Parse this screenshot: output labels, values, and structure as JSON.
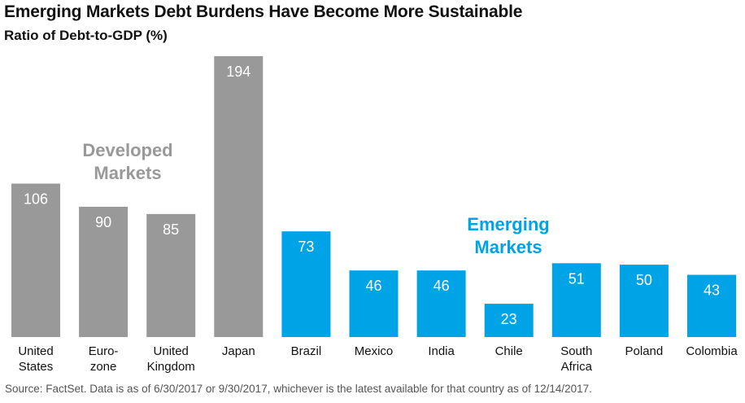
{
  "chart_data": {
    "type": "bar",
    "title": "Emerging Markets Debt Burdens Have Become More Sustainable",
    "subtitle": "Ratio of Debt-to-GDP (%)",
    "xlabel": "",
    "ylabel": "",
    "ylim": [
      0,
      200
    ],
    "grid": false,
    "categories": [
      [
        "United",
        "States"
      ],
      [
        "Euro-",
        "zone"
      ],
      [
        "United",
        "Kingdom"
      ],
      [
        "Japan"
      ],
      [
        "Brazil"
      ],
      [
        "Mexico"
      ],
      [
        "India"
      ],
      [
        "Chile"
      ],
      [
        "South",
        "Africa"
      ],
      [
        "Poland"
      ],
      [
        "Colombia"
      ]
    ],
    "values": [
      106,
      90,
      85,
      194,
      73,
      46,
      46,
      23,
      51,
      50,
      43
    ],
    "groups": [
      {
        "name": "Developed Markets",
        "label_lines": [
          "Developed",
          "Markets"
        ],
        "color": "#999999",
        "indices": [
          0,
          1,
          2,
          3
        ]
      },
      {
        "name": "Emerging Markets",
        "label_lines": [
          "Emerging",
          "Markets"
        ],
        "color": "#00a3e6",
        "indices": [
          4,
          5,
          6,
          7,
          8,
          9,
          10
        ]
      }
    ],
    "data_label_color": "#ffffff",
    "source": "Source: FactSet. Data is as of 6/30/2017 or 9/30/2017, whichever is the latest available for that country as of 12/14/2017."
  }
}
